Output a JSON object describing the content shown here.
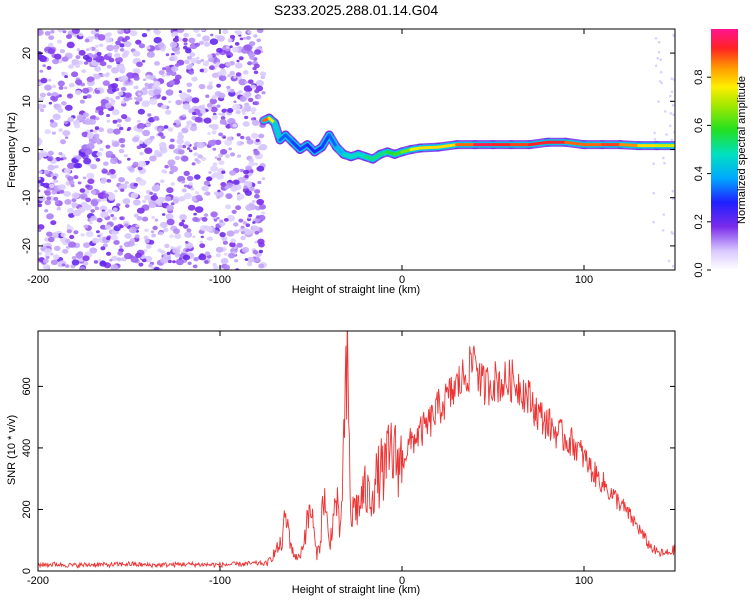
{
  "title": "S233.2025.288.01.14.G04",
  "top_panel": {
    "xlabel": "Height of straight line (km)",
    "ylabel": "Frequency (Hz)",
    "xlim": [
      -200,
      150
    ],
    "ylim": [
      -25,
      25
    ],
    "xticks": [
      -200,
      -100,
      0,
      100
    ],
    "yticks": [
      20,
      10,
      0,
      -10,
      -20
    ],
    "noise_region_x": [
      -200,
      -76
    ],
    "trace": {
      "x": [
        -76,
        -73,
        -70,
        -67,
        -64,
        -60,
        -56,
        -52,
        -48,
        -44,
        -40,
        -36,
        -32,
        -28,
        -24,
        -20,
        -16,
        -12,
        -8,
        -4,
        0,
        5,
        10,
        20,
        30,
        40,
        50,
        60,
        70,
        80,
        90,
        100,
        110,
        120,
        130,
        140,
        150
      ],
      "y": [
        6,
        6.5,
        5.5,
        2,
        3,
        1.5,
        0,
        1,
        -0.5,
        0.5,
        3,
        0.5,
        -1,
        -1.5,
        -1,
        -1.5,
        -2,
        -1,
        -0.5,
        -1,
        -0.5,
        0,
        0.3,
        0.5,
        1,
        1,
        1,
        1,
        1,
        1.5,
        1.5,
        1,
        1,
        1,
        0.8,
        0.8,
        0.8
      ],
      "amplitude": [
        0.85,
        0.9,
        0.6,
        0.3,
        0.35,
        0.3,
        0.3,
        0.3,
        0.25,
        0.3,
        0.3,
        0.35,
        0.45,
        0.5,
        0.45,
        0.5,
        0.55,
        0.5,
        0.55,
        0.6,
        0.6,
        0.7,
        0.8,
        0.75,
        0.8,
        0.95,
        0.95,
        0.9,
        0.9,
        0.95,
        0.9,
        0.85,
        0.9,
        0.9,
        0.8,
        0.75,
        0.7
      ]
    }
  },
  "colorbar": {
    "label": "Normalized spectral amplitude",
    "range": [
      0,
      1
    ],
    "ticks": [
      "0.0",
      "0.2",
      "0.4",
      "0.6",
      "0.8"
    ]
  },
  "chart_data": {
    "type": "line",
    "title": "S233.2025.288.01.14.G04",
    "xlabel": "Height of straight line (km)",
    "ylabel": "SNR (10 * v/v)",
    "xlim": [
      -200,
      150
    ],
    "ylim": [
      0,
      780
    ],
    "xticks": [
      -200,
      -100,
      0,
      100
    ],
    "yticks": [
      0,
      200,
      400,
      600
    ],
    "color": "#ee3333",
    "x": [
      -200,
      -190,
      -180,
      -170,
      -160,
      -150,
      -140,
      -130,
      -120,
      -110,
      -100,
      -90,
      -80,
      -74,
      -70,
      -66,
      -64,
      -62,
      -60,
      -57,
      -55,
      -53,
      -50,
      -47,
      -45,
      -43,
      -40,
      -38,
      -36,
      -34,
      -32,
      -30,
      -28,
      -26,
      -24,
      -21,
      -18,
      -15,
      -12,
      -9,
      -6,
      -3,
      0,
      5,
      10,
      15,
      20,
      25,
      30,
      35,
      38,
      40,
      43,
      46,
      50,
      55,
      60,
      65,
      70,
      75,
      80,
      85,
      90,
      95,
      100,
      105,
      110,
      115,
      120,
      125,
      130,
      135,
      140,
      145,
      150
    ],
    "values": [
      20,
      22,
      18,
      21,
      20,
      23,
      19,
      20,
      22,
      21,
      20,
      22,
      25,
      24,
      60,
      90,
      180,
      120,
      60,
      40,
      70,
      130,
      210,
      50,
      90,
      260,
      80,
      160,
      240,
      100,
      420,
      650,
      160,
      220,
      200,
      260,
      240,
      280,
      320,
      330,
      390,
      360,
      360,
      420,
      450,
      480,
      530,
      560,
      600,
      640,
      660,
      720,
      610,
      600,
      620,
      610,
      620,
      600,
      560,
      510,
      480,
      450,
      430,
      410,
      370,
      320,
      290,
      250,
      220,
      180,
      140,
      90,
      60,
      55,
      70
    ]
  }
}
